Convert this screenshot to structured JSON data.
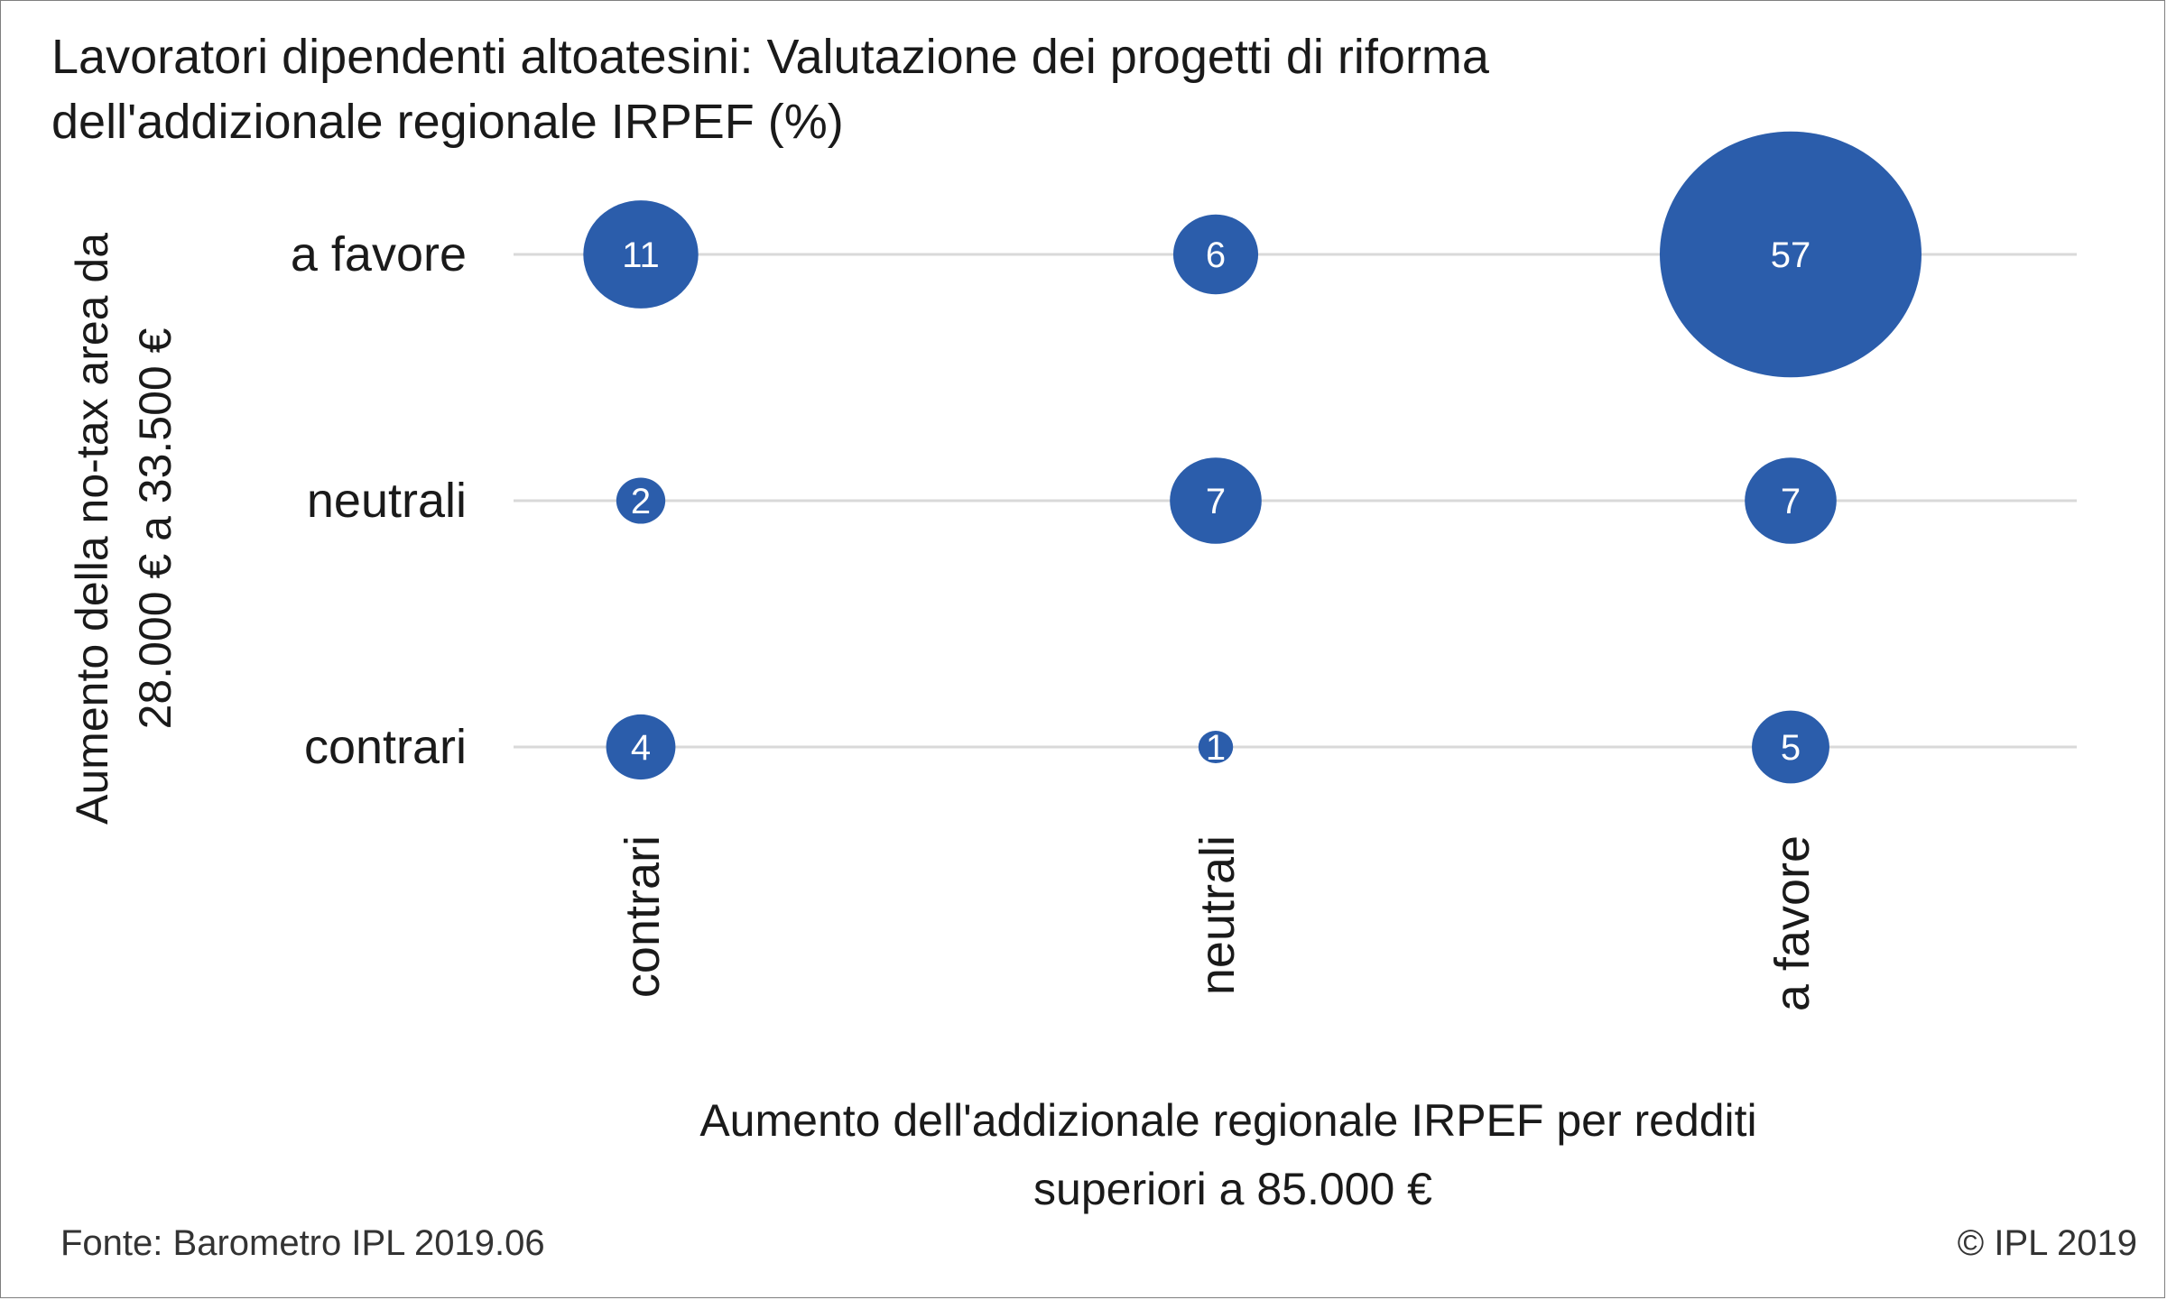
{
  "title_lines": [
    "Lavoratori dipendenti altoatesini: Valutazione dei progetti di riforma",
    "dell'addizionale regionale IRPEF (%)"
  ],
  "source": "Fonte: Barometro IPL 2019.06",
  "copyright": "© IPL 2019",
  "colors": {
    "bubble": "#2b5dab",
    "grid": "#d9d9d9",
    "text": "#1a1a1a"
  },
  "chart_data": {
    "type": "scatter",
    "title": "Lavoratori dipendenti altoatesini: Valutazione dei progetti di riforma dell'addizionale regionale IRPEF (%)",
    "x_categories": [
      "contrari",
      "neutrali",
      "a favore"
    ],
    "y_categories": [
      "contrari",
      "neutrali",
      "a favore"
    ],
    "xlabel_lines": [
      "Aumento dell'addizionale regionale IRPEF per redditi",
      "superiori a 85.000 €"
    ],
    "ylabel_lines": [
      "Aumento della no-tax area da",
      "28.000 € a 33.500 €"
    ],
    "points": [
      {
        "x": "contrari",
        "y": "a favore",
        "value": 11
      },
      {
        "x": "neutrali",
        "y": "a favore",
        "value": 6
      },
      {
        "x": "a favore",
        "y": "a favore",
        "value": 57
      },
      {
        "x": "contrari",
        "y": "neutrali",
        "value": 2
      },
      {
        "x": "neutrali",
        "y": "neutrali",
        "value": 7
      },
      {
        "x": "a favore",
        "y": "neutrali",
        "value": 7
      },
      {
        "x": "contrari",
        "y": "contrari",
        "value": 4
      },
      {
        "x": "neutrali",
        "y": "contrari",
        "value": 1
      },
      {
        "x": "a favore",
        "y": "contrari",
        "value": 5
      }
    ],
    "grid": true,
    "legend": "none"
  }
}
